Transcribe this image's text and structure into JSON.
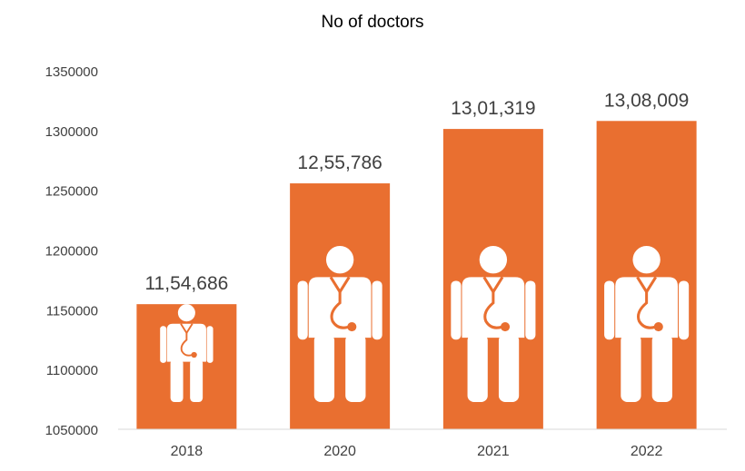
{
  "chart_data": {
    "type": "bar",
    "title": "No of doctors",
    "xlabel": "",
    "ylabel": "",
    "categories": [
      "2018",
      "2020",
      "2021",
      "2022"
    ],
    "values": [
      1154686,
      1255786,
      1301319,
      1308009
    ],
    "data_labels": [
      "11,54,686",
      "12,55,786",
      "13,01,319",
      "13,08,009"
    ],
    "ylim": [
      1050000,
      1350000
    ],
    "yticks": [
      1050000,
      1100000,
      1150000,
      1200000,
      1250000,
      1300000,
      1350000
    ],
    "ytick_labels": [
      "1050000",
      "1100000",
      "1150000",
      "1200000",
      "1250000",
      "1300000",
      "1350000"
    ],
    "grid": false,
    "legend": "none",
    "bar_color": "#E96F30",
    "icon": "doctor-stethoscope-icon",
    "icon_color": "#ffffff",
    "text_color": "#404040",
    "axis_color": "#d9d9d9"
  }
}
